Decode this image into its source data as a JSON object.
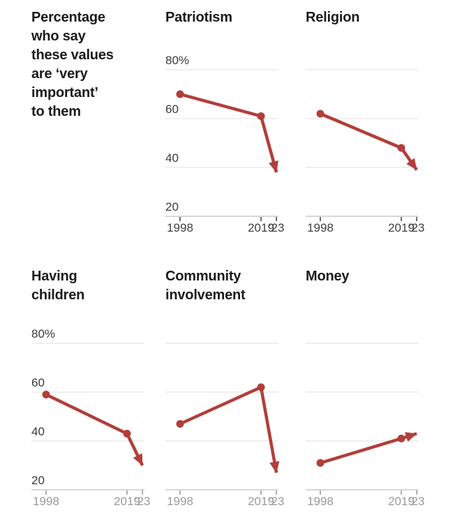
{
  "figure": {
    "description": "Percentage\nwho say\nthese values\nare ‘very\nimportant’\nto them"
  },
  "chart_data": {
    "type": "line",
    "unit": "percent",
    "x": [
      1998,
      2019,
      2023
    ],
    "x_tick_labels": [
      "1998",
      "2019",
      "’23"
    ],
    "y_tick_values": [
      80,
      60,
      40,
      20
    ],
    "y_tick_labels": [
      "80%",
      "60",
      "40",
      "20"
    ],
    "ylim": [
      20,
      80
    ],
    "xlim": [
      1998,
      2023
    ],
    "grid": true,
    "arrow_end": true,
    "legend": "none",
    "series": [
      {
        "name": "patriotism",
        "title": "Patriotism",
        "values": [
          70,
          61,
          38
        ],
        "show_y_labels": true,
        "row": "top"
      },
      {
        "name": "religion",
        "title": "Religion",
        "values": [
          62,
          48,
          39
        ],
        "show_y_labels": false,
        "row": "top"
      },
      {
        "name": "having-children",
        "title": "Having\nchildren",
        "values": [
          59,
          43,
          30
        ],
        "show_y_labels": true,
        "row": "bottom"
      },
      {
        "name": "community-involvement",
        "title": "Community\ninvolvement",
        "values": [
          47,
          62,
          27
        ],
        "show_y_labels": false,
        "row": "bottom"
      },
      {
        "name": "money",
        "title": "Money",
        "values": [
          31,
          41,
          43
        ],
        "show_y_labels": false,
        "row": "bottom"
      }
    ]
  },
  "colors": {
    "line": "#b23e3a",
    "gridline": "#e1e1e1",
    "axis_line": "#cccccc",
    "title_text": "#1b1b1b",
    "y_label_text": "#3a3a3a",
    "x_label_top": "#3f3f3f",
    "x_label_bottom": "#9b9b9b",
    "tick_top": "#4a4a4a",
    "tick_bottom": "#9b9b9b",
    "background": "#ffffff"
  }
}
